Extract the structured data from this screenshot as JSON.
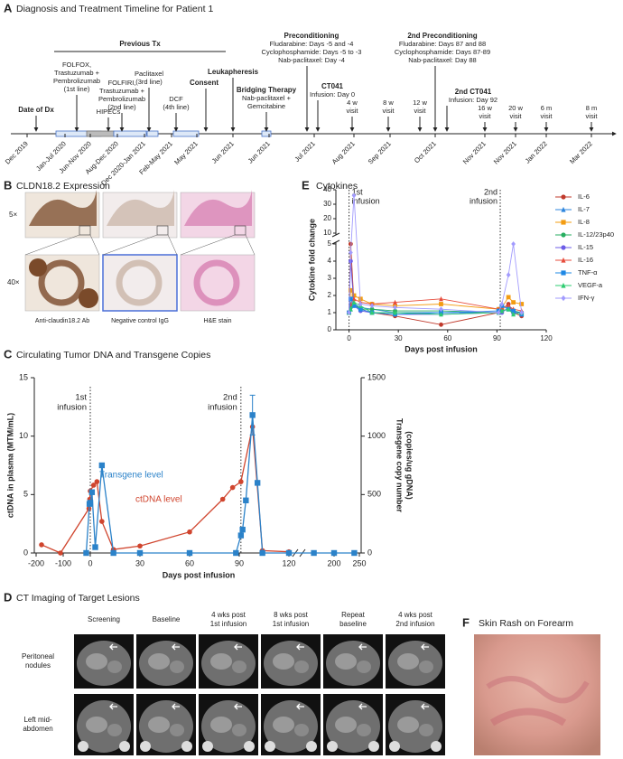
{
  "panel_labels": [
    "A",
    "B",
    "C",
    "D",
    "E",
    "F"
  ],
  "timeline": {
    "title": "Diagnosis and Treatment Timeline for Patient 1",
    "previous_tx": "Previous Tx",
    "events": [
      {
        "title": "Date of Dx",
        "lines": []
      },
      {
        "title": null,
        "lines": [
          "FOLFOX,",
          "Trastuzumab +",
          "Pembrolizumab",
          "(1st line)"
        ]
      },
      {
        "title": null,
        "lines": [
          "HIPECs"
        ]
      },
      {
        "title": null,
        "lines": [
          "FOLFIRI,",
          "Trastuzumab +",
          "Pembrolizumab",
          "(2nd line)"
        ]
      },
      {
        "title": null,
        "lines": [
          "Paclitaxel",
          "(3rd line)"
        ]
      },
      {
        "title": null,
        "lines": [
          "DCF",
          "(4th line)"
        ]
      },
      {
        "title": "Consent",
        "lines": []
      },
      {
        "title": "Leukapheresis",
        "lines": []
      },
      {
        "title": "Bridging Therapy",
        "lines": [
          "Nab-paclitaxel +",
          "Gemcitabine"
        ]
      },
      {
        "title": "Preconditioning",
        "lines": [
          "Fludarabine: Days -5 and -4",
          "Cyclophosphamide: Days -5 to -3",
          "Nab-paclitaxel: Day -4"
        ]
      },
      {
        "title": "CT041",
        "lines": [
          "Infusion: Day 0"
        ]
      },
      {
        "title": null,
        "lines": [
          "4 w",
          "visit"
        ]
      },
      {
        "title": null,
        "lines": [
          "8 w",
          "visit"
        ]
      },
      {
        "title": null,
        "lines": [
          "12 w",
          "visit"
        ]
      },
      {
        "title": "2nd Preconditioning",
        "lines": [
          "Fludarabine: Days 87 and 88",
          "Cyclophosphamide: Days 87-89",
          "Nab-paclitaxel: Day 88"
        ]
      },
      {
        "title": "2nd CT041",
        "lines": [
          "Infusion: Day 92"
        ]
      },
      {
        "title": null,
        "lines": [
          "16 w",
          "visit"
        ]
      },
      {
        "title": null,
        "lines": [
          "20 w",
          "visit"
        ]
      },
      {
        "title": null,
        "lines": [
          "6 m",
          "visit"
        ]
      },
      {
        "title": null,
        "lines": [
          "8 m",
          "visit"
        ]
      }
    ],
    "dates": [
      "Dec 2019",
      "Jan-Jul 2020",
      "Jun-Nov 2020",
      "Aug-Dec 2020",
      "Dec 2020-Jan 2021",
      "Feb-May 2021",
      "May 2021",
      "Jun 2021",
      "Jun 2021",
      "Jul 2021",
      "Aug 2021",
      "Sep 2021",
      "Oct 2021",
      "Nov 2021",
      "Nov 2021",
      "Jan 2022",
      "Mar 2022"
    ]
  },
  "cldn": {
    "title": "CLDN18.2 Expression",
    "magnifications": [
      "5×",
      "40×"
    ],
    "captions": [
      "Anti-claudin18.2 Ab",
      "Negative control IgG",
      "H&E stain"
    ]
  },
  "chart_data": [
    {
      "type": "line",
      "title": "Cytokines",
      "xlabel": "Days post infusion",
      "ylabel": "Cytokine fold change",
      "xlim": [
        -8,
        120
      ],
      "xticks": [
        0,
        30,
        60,
        90,
        120
      ],
      "ylim": [
        0,
        40
      ],
      "ybreak": [
        5,
        10
      ],
      "yticks": [
        0,
        1,
        2,
        3,
        4,
        5,
        10,
        20,
        30,
        40
      ],
      "x": [
        0,
        1,
        3,
        7,
        14,
        28,
        56,
        91,
        93,
        97,
        100,
        105
      ],
      "annotations": [
        {
          "text": [
            "1st",
            "infusion"
          ],
          "x": 0
        },
        {
          "text": [
            "2nd",
            "infusion"
          ],
          "x": 92
        }
      ],
      "series": [
        {
          "name": "IL-6",
          "color": "#c0392b",
          "marker": "circle",
          "values": [
            1,
            5,
            1.5,
            1.2,
            1.0,
            0.8,
            0.3,
            1.0,
            1.2,
            1.5,
            1.0,
            0.8
          ]
        },
        {
          "name": "IL-7",
          "color": "#2e86de",
          "marker": "triangle",
          "values": [
            1,
            1.2,
            1.5,
            1.3,
            1.2,
            1.0,
            1.0,
            1.0,
            1.1,
            1.2,
            1.0,
            1.0
          ]
        },
        {
          "name": "IL-8",
          "color": "#f39c12",
          "marker": "square",
          "values": [
            1,
            2.3,
            2.0,
            1.8,
            1.5,
            1.4,
            1.5,
            1.2,
            1.3,
            1.9,
            1.6,
            1.5
          ]
        },
        {
          "name": "IL-12/23p40",
          "color": "#27ae60",
          "marker": "circle",
          "values": [
            1,
            1.3,
            1.5,
            1.2,
            1.2,
            1.1,
            1.1,
            1.0,
            1.1,
            1.2,
            1.1,
            1.0
          ]
        },
        {
          "name": "IL-15",
          "color": "#6c5ce7",
          "marker": "circle",
          "values": [
            1,
            4.0,
            1.4,
            1.1,
            1.0,
            0.9,
            0.9,
            1.0,
            1.0,
            1.3,
            1.0,
            1.0
          ]
        },
        {
          "name": "IL-16",
          "color": "#e74c3c",
          "marker": "triangle",
          "values": [
            1,
            1.5,
            1.8,
            1.6,
            1.5,
            1.6,
            1.8,
            1.2,
            1.3,
            1.4,
            1.2,
            1.1
          ]
        },
        {
          "name": "TNF-α",
          "color": "#1e88e5",
          "marker": "square",
          "values": [
            1,
            1.8,
            1.4,
            1.2,
            1.0,
            0.9,
            1.0,
            1.1,
            1.4,
            1.2,
            1.1,
            0.9
          ]
        },
        {
          "name": "VEGF-a",
          "color": "#2ecc71",
          "marker": "triangle",
          "values": [
            1,
            1.2,
            1.6,
            1.4,
            1.0,
            1.0,
            0.9,
            1.0,
            1.1,
            1.2,
            0.9,
            1.0
          ]
        },
        {
          "name": "IFN-γ",
          "color": "#a29bfe",
          "marker": "diamond",
          "values": [
            1,
            4.5,
            36,
            1.5,
            1.4,
            1.3,
            1.2,
            1.0,
            1.5,
            3.2,
            5.0,
            1.0
          ]
        }
      ]
    },
    {
      "type": "line",
      "title": "Circulating Tumor DNA and Transgene Copies",
      "xlabel": "Days post infusion",
      "ylabel": "ctDNA in plasma (MTM/mL)",
      "y2label": [
        "Transgene copy number",
        "(copies/ug gDNA)"
      ],
      "xlim": [
        [
          -200,
          0
        ],
        [
          0,
          120
        ],
        [
          150,
          250
        ]
      ],
      "xticks": [
        -200,
        -100,
        0,
        30,
        60,
        90,
        120,
        200,
        250
      ],
      "ylim": [
        0,
        15
      ],
      "yticks": [
        0,
        5,
        10,
        15
      ],
      "y2lim": [
        0,
        1500
      ],
      "y2ticks": [
        0,
        500,
        1000,
        1500
      ],
      "annotations": [
        {
          "text": [
            "1st",
            "infusion"
          ],
          "x": 0
        },
        {
          "text": [
            "2nd",
            "infusion"
          ],
          "x": 91
        }
      ],
      "series": [
        {
          "name": "ctDNA level",
          "color": "#d0452e",
          "marker": "circle",
          "x": [
            -180,
            -110,
            -5,
            -2,
            0,
            2,
            4,
            7,
            14,
            30,
            60,
            80,
            86,
            91,
            98,
            104,
            120
          ],
          "values": [
            0.7,
            0,
            3.8,
            4.6,
            5.3,
            5.8,
            6.1,
            2.7,
            0.3,
            0.6,
            1.8,
            4.6,
            5.6,
            6.1,
            10.8,
            0.2,
            0.1
          ]
        },
        {
          "name": "Transgene level",
          "color": "#2b82c9",
          "marker": "square",
          "axis": "y2",
          "x": [
            -15,
            -3,
            0,
            1,
            3,
            7,
            14,
            30,
            60,
            88,
            91,
            92,
            94,
            98,
            101,
            104,
            120,
            160,
            200,
            240
          ],
          "values": [
            0,
            420,
            430,
            520,
            50,
            750,
            0,
            0,
            0,
            0,
            150,
            200,
            450,
            1180,
            600,
            0,
            0,
            0,
            0,
            0
          ],
          "errors": [
            null,
            null,
            null,
            null,
            null,
            null,
            null,
            null,
            null,
            null,
            null,
            null,
            null,
            170,
            null,
            null,
            null,
            null,
            null,
            null
          ]
        }
      ]
    }
  ],
  "ct": {
    "title": "CT Imaging of Target Lesions",
    "columns": [
      [
        "Screening"
      ],
      [
        "Baseline"
      ],
      [
        "4 wks post",
        "1st infusion"
      ],
      [
        "8 wks post",
        "1st infusion"
      ],
      [
        "Repeat",
        "baseline"
      ],
      [
        "4 wks post",
        "2nd infusion"
      ]
    ],
    "rows": [
      [
        "Peritoneal",
        "nodules"
      ],
      [
        "Left mid-",
        "abdomen"
      ]
    ]
  },
  "rash": {
    "title": "Skin Rash on Forearm"
  }
}
